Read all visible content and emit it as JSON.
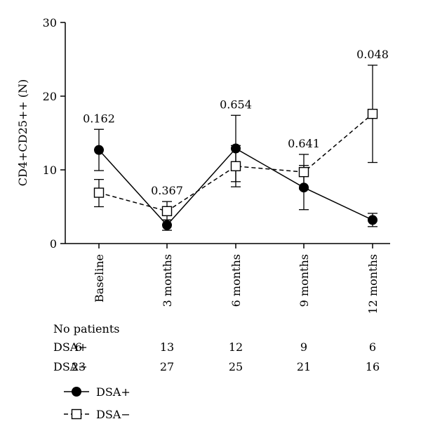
{
  "chart_data": {
    "type": "line",
    "ylabel": "CD4+CD25++ (N)",
    "ylim": [
      0,
      30
    ],
    "yticks": [
      0,
      10,
      20,
      30
    ],
    "categories": [
      "Baseline",
      "3 months",
      "6 months",
      "9 months",
      "12 months"
    ],
    "p_values": [
      "0.162",
      "0.367",
      "0.654",
      "0.641",
      "0.048"
    ],
    "series": [
      {
        "name": "DSA+",
        "marker": "filled-circle",
        "line_style": "solid",
        "values": [
          12.7,
          2.5,
          12.9,
          7.6,
          3.2
        ],
        "err_low": [
          9.9,
          1.8,
          8.4,
          4.6,
          2.3
        ],
        "err_high": [
          15.5,
          3.2,
          17.4,
          10.6,
          4.1
        ]
      },
      {
        "name": "DSA−",
        "marker": "open-square",
        "line_style": "dashed",
        "values": [
          6.9,
          4.4,
          10.5,
          9.7,
          17.6
        ],
        "err_low": [
          5.0,
          3.2,
          7.7,
          7.4,
          11.0
        ],
        "err_high": [
          8.7,
          5.7,
          13.3,
          12.1,
          24.2
        ]
      }
    ]
  },
  "patients": {
    "title": "No patients",
    "rows": [
      {
        "label": "DSA+",
        "values": [
          "6",
          "13",
          "12",
          "9",
          "6"
        ]
      },
      {
        "label": "DSA−",
        "values": [
          "23",
          "27",
          "25",
          "21",
          "16"
        ]
      }
    ]
  }
}
